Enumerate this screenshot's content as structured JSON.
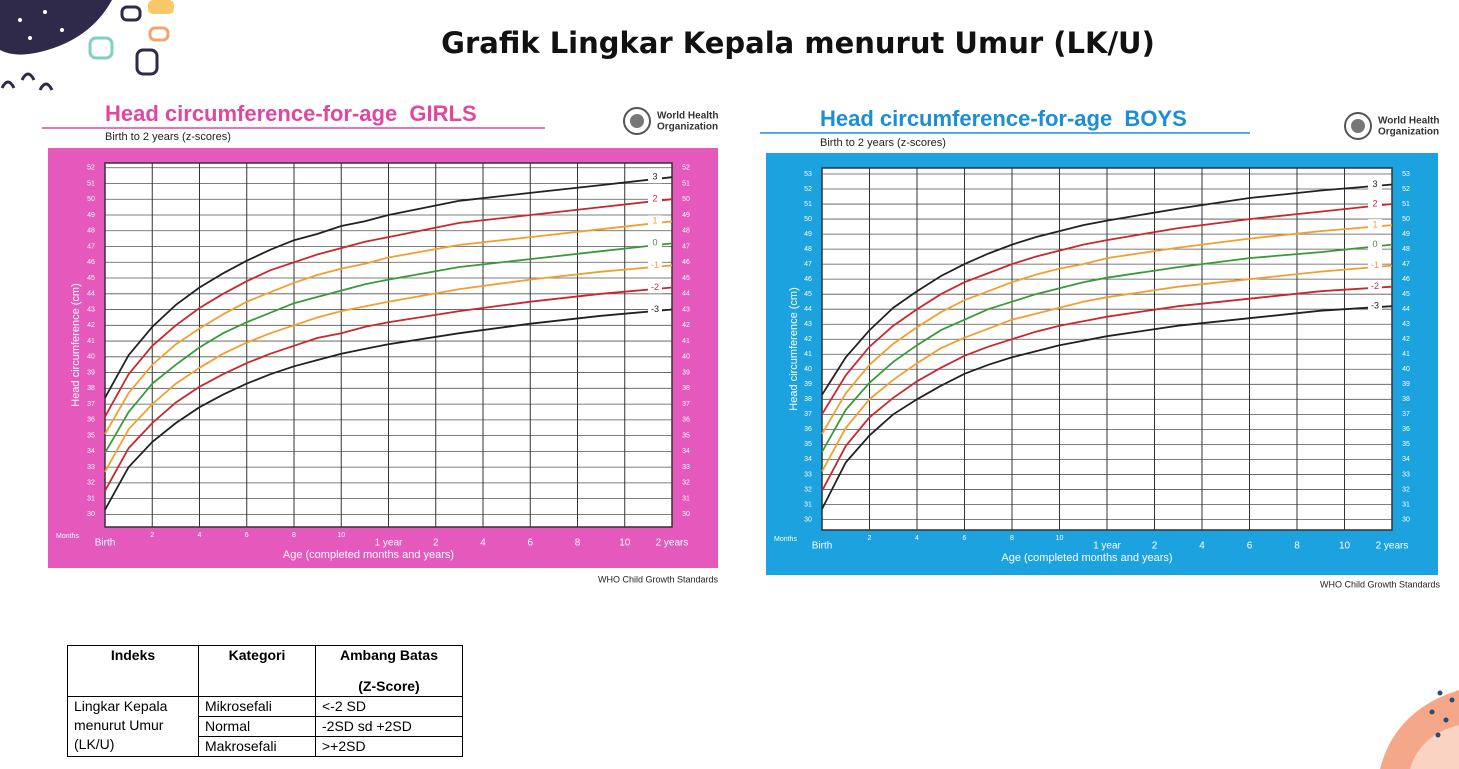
{
  "title": "Grafik Lingkar Kepala menurut Umur (LK/U)",
  "chart_data": [
    {
      "type": "line",
      "title": "Head circumference-for-age  GIRLS",
      "subtitle": "Birth to 2 years (z-scores)",
      "logo_text": [
        "World Health",
        "Organization"
      ],
      "footer": "WHO Child Growth Standards",
      "xlabel": "Age (completed months and years)",
      "ylabel": "Head circumference (cm)",
      "x_unit_label": "Months",
      "panel_color": "#e558bc",
      "title_color": "#e0489f",
      "grid": true,
      "x": [
        0,
        1,
        2,
        3,
        4,
        5,
        6,
        7,
        8,
        9,
        10,
        11,
        12,
        15,
        18,
        21,
        24
      ],
      "xlim": [
        0,
        24
      ],
      "xticks": [
        {
          "value": 0,
          "label": "Birth"
        },
        2,
        4,
        6,
        8,
        10,
        {
          "value": 12,
          "label": "1 year"
        },
        {
          "value": 14,
          "label": "2"
        },
        {
          "value": 16,
          "label": "4"
        },
        {
          "value": 18,
          "label": "6"
        },
        {
          "value": 20,
          "label": "8"
        },
        {
          "value": 22,
          "label": "10"
        },
        {
          "value": 24,
          "label": "2 years"
        }
      ],
      "ylim": [
        29.2,
        52.3
      ],
      "yticks": [
        30,
        31,
        32,
        33,
        34,
        35,
        36,
        37,
        38,
        39,
        40,
        41,
        42,
        43,
        44,
        45,
        46,
        47,
        48,
        49,
        50,
        51,
        52
      ],
      "series": [
        {
          "name": "3",
          "color": "#222222",
          "values": [
            37.4,
            40.1,
            41.9,
            43.3,
            44.4,
            45.3,
            46.1,
            46.8,
            47.4,
            47.8,
            48.3,
            48.6,
            49.0,
            49.9,
            50.4,
            50.9,
            51.4
          ]
        },
        {
          "name": "2",
          "color": "#c8282e",
          "values": [
            36.2,
            38.9,
            40.7,
            42.0,
            43.1,
            44.0,
            44.8,
            45.5,
            46.0,
            46.5,
            46.9,
            47.3,
            47.6,
            48.5,
            49.0,
            49.5,
            50.0
          ]
        },
        {
          "name": "1",
          "color": "#f0a030",
          "values": [
            35.1,
            37.7,
            39.5,
            40.8,
            41.8,
            42.7,
            43.5,
            44.1,
            44.7,
            45.2,
            45.6,
            45.9,
            46.3,
            47.1,
            47.6,
            48.1,
            48.6
          ]
        },
        {
          "name": "0",
          "color": "#3a9a3a",
          "values": [
            33.9,
            36.5,
            38.3,
            39.5,
            40.6,
            41.5,
            42.2,
            42.8,
            43.4,
            43.8,
            44.2,
            44.6,
            44.9,
            45.7,
            46.2,
            46.7,
            47.2
          ]
        },
        {
          "name": "-1",
          "color": "#f0a030",
          "values": [
            32.7,
            35.4,
            37.0,
            38.3,
            39.3,
            40.2,
            40.9,
            41.5,
            42.0,
            42.5,
            42.9,
            43.2,
            43.5,
            44.3,
            44.9,
            45.4,
            45.8
          ]
        },
        {
          "name": "-2",
          "color": "#c8282e",
          "values": [
            31.5,
            34.2,
            35.8,
            37.1,
            38.1,
            38.9,
            39.6,
            40.2,
            40.7,
            41.2,
            41.5,
            41.9,
            42.2,
            42.9,
            43.5,
            44.0,
            44.4
          ]
        },
        {
          "name": "-3",
          "color": "#222222",
          "values": [
            30.3,
            33.0,
            34.6,
            35.8,
            36.8,
            37.6,
            38.3,
            38.9,
            39.4,
            39.8,
            40.2,
            40.5,
            40.8,
            41.5,
            42.1,
            42.6,
            43.0
          ]
        }
      ]
    },
    {
      "type": "line",
      "title": "Head circumference-for-age  BOYS",
      "subtitle": "Birth to 2 years (z-scores)",
      "logo_text": [
        "World Health",
        "Organization"
      ],
      "footer": "WHO Child Growth Standards",
      "xlabel": "Age (completed months and years)",
      "ylabel": "Head circumference (cm)",
      "x_unit_label": "Months",
      "panel_color": "#1ca2de",
      "title_color": "#1a8fd6",
      "grid": true,
      "x": [
        0,
        1,
        2,
        3,
        4,
        5,
        6,
        7,
        8,
        9,
        10,
        11,
        12,
        15,
        18,
        21,
        24
      ],
      "xlim": [
        0,
        24
      ],
      "xticks": [
        {
          "value": 0,
          "label": "Birth"
        },
        2,
        4,
        6,
        8,
        10,
        {
          "value": 12,
          "label": "1 year"
        },
        {
          "value": 14,
          "label": "2"
        },
        {
          "value": 16,
          "label": "4"
        },
        {
          "value": 18,
          "label": "6"
        },
        {
          "value": 20,
          "label": "8"
        },
        {
          "value": 22,
          "label": "10"
        },
        {
          "value": 24,
          "label": "2 years"
        }
      ],
      "ylim": [
        29.3,
        53.4
      ],
      "yticks": [
        30,
        31,
        32,
        33,
        34,
        35,
        36,
        37,
        38,
        39,
        40,
        41,
        42,
        43,
        44,
        45,
        46,
        47,
        48,
        49,
        50,
        51,
        52,
        53
      ],
      "series": [
        {
          "name": "3",
          "color": "#222222",
          "values": [
            38.3,
            40.8,
            42.6,
            44.1,
            45.2,
            46.2,
            47.0,
            47.7,
            48.3,
            48.8,
            49.2,
            49.6,
            49.9,
            50.7,
            51.4,
            51.9,
            52.3
          ]
        },
        {
          "name": "2",
          "color": "#c8282e",
          "values": [
            37.0,
            39.6,
            41.5,
            42.9,
            44.0,
            45.0,
            45.8,
            46.4,
            47.0,
            47.5,
            47.9,
            48.3,
            48.6,
            49.4,
            50.0,
            50.5,
            51.0
          ]
        },
        {
          "name": "1",
          "color": "#f0a030",
          "values": [
            35.7,
            38.4,
            40.3,
            41.7,
            42.8,
            43.8,
            44.6,
            45.2,
            45.8,
            46.3,
            46.7,
            47.0,
            47.4,
            48.1,
            48.7,
            49.2,
            49.6
          ]
        },
        {
          "name": "0",
          "color": "#3a9a3a",
          "values": [
            34.5,
            37.3,
            39.1,
            40.5,
            41.6,
            42.6,
            43.3,
            44.0,
            44.5,
            45.0,
            45.4,
            45.8,
            46.1,
            46.8,
            47.4,
            47.8,
            48.3
          ]
        },
        {
          "name": "-1",
          "color": "#f0a030",
          "values": [
            33.2,
            36.1,
            38.0,
            39.3,
            40.4,
            41.4,
            42.1,
            42.7,
            43.3,
            43.7,
            44.1,
            44.5,
            44.8,
            45.5,
            46.0,
            46.5,
            46.9
          ]
        },
        {
          "name": "-2",
          "color": "#c8282e",
          "values": [
            31.9,
            34.9,
            36.8,
            38.1,
            39.2,
            40.1,
            40.9,
            41.5,
            42.0,
            42.5,
            42.9,
            43.2,
            43.5,
            44.2,
            44.7,
            45.2,
            45.5
          ]
        },
        {
          "name": "-3",
          "color": "#222222",
          "values": [
            30.7,
            33.8,
            35.6,
            37.0,
            38.0,
            38.9,
            39.7,
            40.3,
            40.8,
            41.2,
            41.6,
            41.9,
            42.2,
            42.9,
            43.4,
            43.9,
            44.2
          ]
        }
      ]
    }
  ],
  "table": {
    "header": [
      "Indeks",
      "Kategori",
      [
        "Ambang Batas",
        "(Z-Score)"
      ]
    ],
    "index_label": "Lingkar Kepala menurut Umur (LK/U)",
    "rows": [
      [
        "Mikrosefali",
        "<-2 SD"
      ],
      [
        "Normal",
        "-2SD sd +2SD"
      ],
      [
        "Makrosefali",
        ">+2SD"
      ]
    ]
  }
}
